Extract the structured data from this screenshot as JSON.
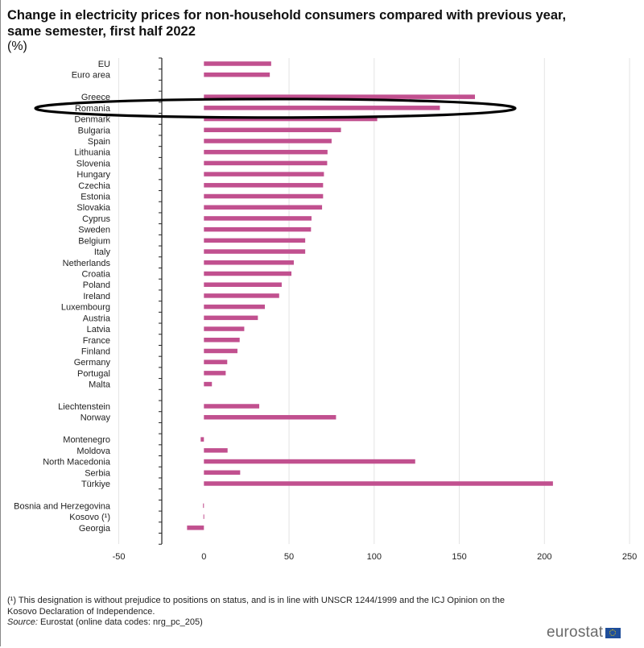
{
  "header": {
    "title": "Change in electricity prices for non-household consumers compared with previous year, same semester, first half 2022",
    "unit": "(%)"
  },
  "chart_data": {
    "type": "bar",
    "orientation": "horizontal",
    "title": "Change in electricity prices for non-household consumers compared with previous year, same semester, first half 2022",
    "unit": "(%)",
    "xlabel": "",
    "ylabel": "",
    "xlim": [
      -50,
      250
    ],
    "xticks": [
      -50,
      0,
      50,
      100,
      150,
      200,
      250
    ],
    "grid": "vertical",
    "bar_color": "#c1508f",
    "groups": [
      {
        "name": "aggregates",
        "categories": [
          "EU",
          "Euro area"
        ],
        "values": [
          39.5,
          38.7
        ]
      },
      {
        "name": "member_states",
        "categories": [
          "Greece",
          "Romania",
          "Denmark",
          "Bulgaria",
          "Spain",
          "Lithuania",
          "Slovenia",
          "Hungary",
          "Czechia",
          "Estonia",
          "Slovakia",
          "Cyprus",
          "Sweden",
          "Belgium",
          "Italy",
          "Netherlands",
          "Croatia",
          "Poland",
          "Ireland",
          "Luxembourg",
          "Austria",
          "Latvia",
          "France",
          "Finland",
          "Germany",
          "Portugal",
          "Malta"
        ],
        "values": [
          159.2,
          138.6,
          101.8,
          80.5,
          75.0,
          72.6,
          72.4,
          70.5,
          70.0,
          70.0,
          69.4,
          63.2,
          62.9,
          59.5,
          59.5,
          52.8,
          51.4,
          45.7,
          44.2,
          35.8,
          31.7,
          23.7,
          21.0,
          19.7,
          13.7,
          12.8,
          4.7
        ]
      },
      {
        "name": "efta",
        "categories": [
          "Liechtenstein",
          "Norway"
        ],
        "values": [
          32.5,
          77.6
        ]
      },
      {
        "name": "candidates",
        "categories": [
          "Montenegro",
          "Moldova",
          "North Macedonia",
          "Serbia",
          "Türkiye"
        ],
        "values": [
          -1.9,
          13.9,
          124.1,
          21.3,
          205.0
        ]
      },
      {
        "name": "potential_candidates",
        "categories": [
          "Bosnia and Herzegovina",
          "Kosovo (¹)",
          "Georgia"
        ],
        "values": [
          -0.5,
          -0.3,
          -9.9
        ]
      }
    ],
    "annotation": {
      "type": "ellipse",
      "highlights": "Romania",
      "color": "#000000"
    }
  },
  "footnote": {
    "note": "(¹) This designation is without prejudice to positions on status, and is in line with UNSCR 1244/1999 and the ICJ Opinion on the Kosovo Declaration of Independence.",
    "source_label": "Source:",
    "source_text": " Eurostat (online data codes: nrg_pc_205)"
  },
  "logo": {
    "text": "eurostat",
    "icon": "eu-flag-icon"
  }
}
